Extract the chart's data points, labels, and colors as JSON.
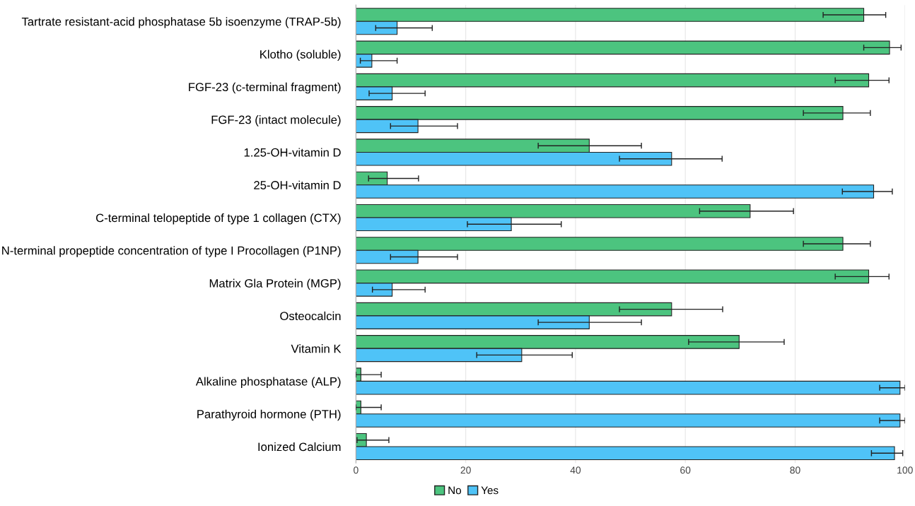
{
  "chart_data": {
    "type": "bar",
    "orientation": "horizontal",
    "categories": [
      "Tartrate resistant-acid phosphatase 5b isoenzyme (TRAP-5b)",
      "Klotho (soluble)",
      "FGF-23 (c-terminal fragment)",
      "FGF-23 (intact molecule)",
      "1.25-OH-vitamin D",
      "25-OH-vitamin D",
      "C-terminal telopeptide of type 1 collagen (CTX)",
      "N-terminal propeptide concentration of type I Procollagen (P1NP)",
      "Matrix Gla Protein (MGP)",
      "Osteocalcin",
      "Vitamin K",
      "Alkaline phosphatase (ALP)",
      "Parathyroid hormone (PTH)",
      "Ionized Calcium"
    ],
    "series": [
      {
        "name": "No",
        "color": "#4cc47f",
        "values": [
          92.5,
          97.2,
          93.4,
          88.7,
          42.5,
          5.7,
          71.8,
          88.7,
          93.4,
          57.5,
          69.8,
          0.9,
          0.9,
          1.9
        ],
        "errors": [
          [
            85.1,
            96.5
          ],
          [
            92.5,
            99.3
          ],
          [
            87.3,
            97.1
          ],
          [
            81.5,
            93.7
          ],
          [
            33.2,
            52.0
          ],
          [
            2.3,
            11.4
          ],
          [
            62.6,
            79.7
          ],
          [
            81.5,
            93.7
          ],
          [
            87.3,
            97.1
          ],
          [
            48.0,
            66.8
          ],
          [
            60.6,
            78.0
          ],
          [
            0,
            4.6
          ],
          [
            0,
            4.6
          ],
          [
            0.2,
            6.0
          ]
        ]
      },
      {
        "name": "Yes",
        "color": "#4fc3f7",
        "values": [
          7.5,
          2.9,
          6.6,
          11.3,
          57.5,
          94.3,
          28.3,
          11.3,
          6.6,
          42.5,
          30.2,
          99.1,
          99.1,
          98.1
        ],
        "errors": [
          [
            3.6,
            13.9
          ],
          [
            0.8,
            7.5
          ],
          [
            2.4,
            12.6
          ],
          [
            6.3,
            18.5
          ],
          [
            48.0,
            66.7
          ],
          [
            88.6,
            97.7
          ],
          [
            20.3,
            37.4
          ],
          [
            6.3,
            18.5
          ],
          [
            3.0,
            12.6
          ],
          [
            33.2,
            52.0
          ],
          [
            22.0,
            39.4
          ],
          [
            95.4,
            100
          ],
          [
            95.4,
            100
          ],
          [
            93.9,
            99.6
          ]
        ]
      }
    ],
    "xlim": [
      0,
      100
    ],
    "xticks": [
      0,
      20,
      40,
      60,
      80,
      100
    ],
    "grid": "x",
    "legend": "bottom"
  }
}
